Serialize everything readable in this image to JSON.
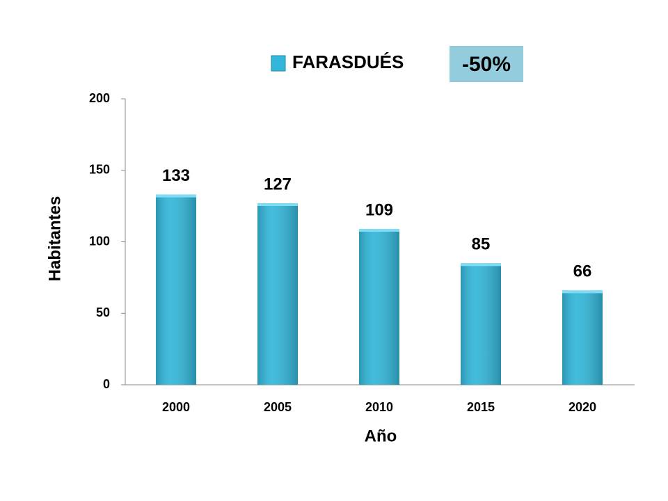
{
  "chart_data": {
    "type": "bar",
    "legend_label": "FARASDUÉS",
    "annotation": "-50%",
    "x_label": "Año",
    "y_label": "Habitantes",
    "categories": [
      "2000",
      "2005",
      "2010",
      "2015",
      "2020"
    ],
    "values": [
      133,
      127,
      109,
      85,
      66
    ],
    "color": "#33b6d9",
    "ylim": [
      0,
      200
    ],
    "yticks": [
      0,
      50,
      100,
      150,
      200
    ],
    "grid": false,
    "legend_position": "top"
  }
}
